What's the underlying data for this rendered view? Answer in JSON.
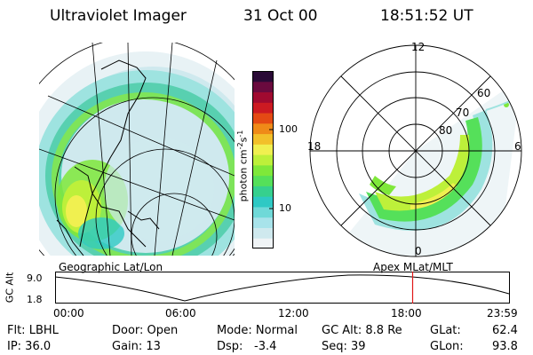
{
  "header": {
    "title": "Ultraviolet Imager",
    "date": "31 Oct 00",
    "time": "18:51:52 UT"
  },
  "geo_panel": {
    "caption": "Geographic Lat/Lon"
  },
  "polar_panel": {
    "caption": "Apex MLat/MLT",
    "mlt_labels": [
      "12",
      "18",
      "6",
      "0"
    ],
    "lat_labels": [
      "80",
      "70",
      "60"
    ]
  },
  "colorbar": {
    "unit_label": "photon cm",
    "unit_exp1": "-2",
    "unit_mid": "s",
    "unit_exp2": "-1",
    "ticks": [
      "100",
      "10"
    ],
    "colors": [
      "#f0f4f6",
      "#cfe9ee",
      "#a8e3ea",
      "#6fd9d8",
      "#2ec9c4",
      "#36d08e",
      "#55e05a",
      "#7fe83a",
      "#bdf03a",
      "#f0f050",
      "#f2c02a",
      "#ef8a18",
      "#e44a14",
      "#cc1a22",
      "#a00a30",
      "#6a0a3e",
      "#2a0a36"
    ]
  },
  "timeline": {
    "ylabel": "GC Alt",
    "yticks": [
      "9.0",
      "1.8"
    ],
    "xticks": [
      "00:00",
      "06:00",
      "12:00",
      "18:00",
      "23:59"
    ],
    "current_fraction": 0.7862,
    "marker_color": "#e01818"
  },
  "status": {
    "row1": {
      "flt": "Flt: LBHL",
      "door": "Door: Open",
      "mode": "Mode: Normal",
      "gcalt": "GC Alt: 8.8 Re",
      "glat_label": "GLat:",
      "glat_value": "62.4"
    },
    "row2": {
      "ip": "IP: 36.0",
      "gain": "Gain: 13",
      "dsp_label": "Dsp:",
      "dsp_value": "-3.4",
      "seq": "Seq: 39",
      "glon_label": "GLon:",
      "glon_value": "93.8"
    }
  }
}
